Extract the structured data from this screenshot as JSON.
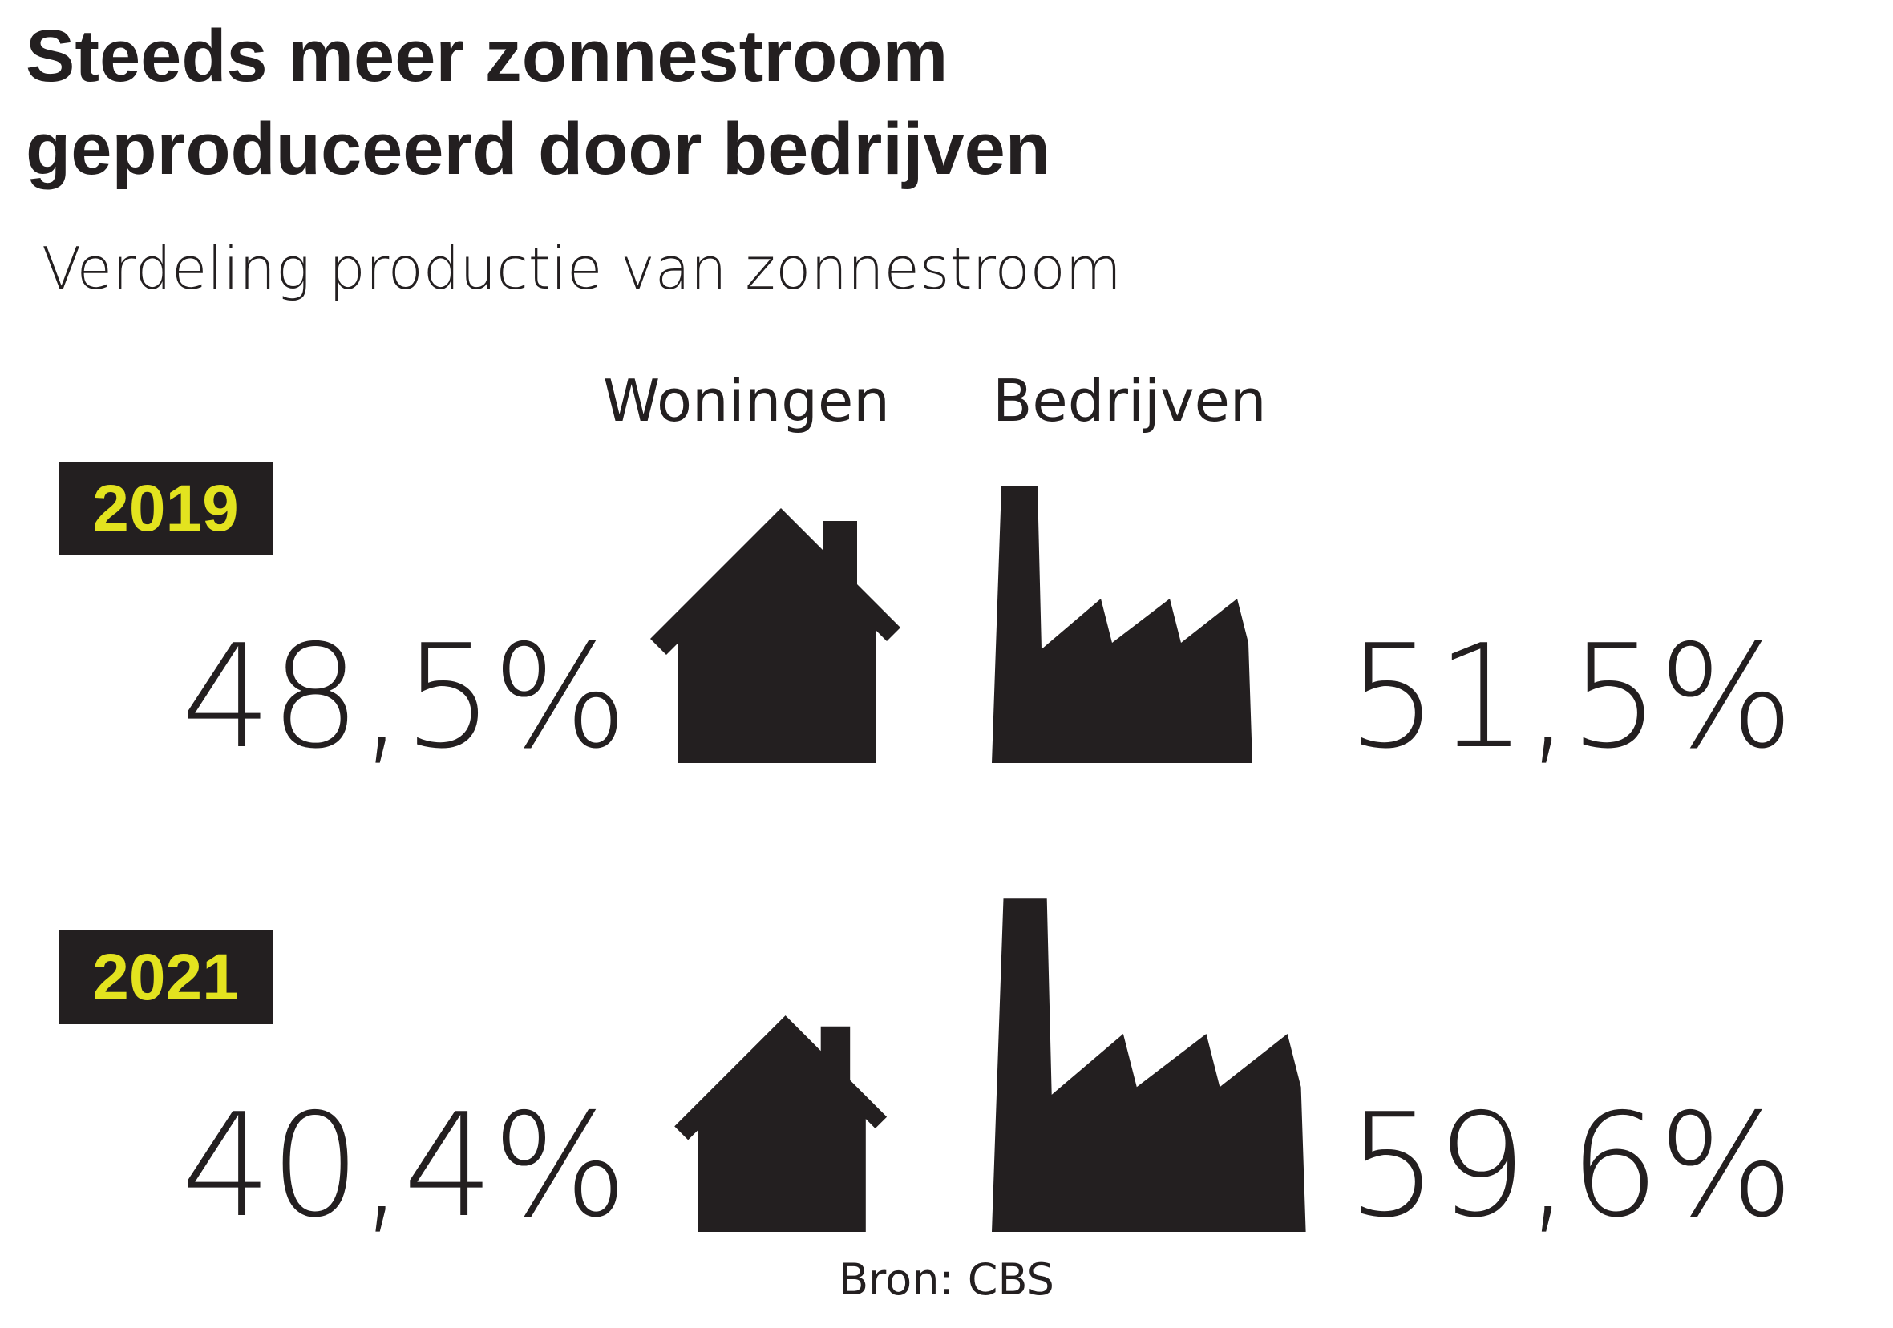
{
  "title": "Steeds meer zonnestroom geproduceerd door bedrijven",
  "subtitle": "Verdeling productie van zonnestroom",
  "columns": {
    "left": "Woningen",
    "right": "Bedrijven"
  },
  "source": "Bron: CBS",
  "colors": {
    "ink": "#231f20",
    "year_text": "#e3e31f",
    "background": "#ffffff"
  },
  "icons": {
    "left": "house-icon",
    "right": "factory-icon"
  },
  "chart_data": {
    "type": "table",
    "title": "Steeds meer zonnestroom geproduceerd door bedrijven",
    "subtitle": "Verdeling productie van zonnestroom",
    "categories": [
      "2019",
      "2021"
    ],
    "series": [
      {
        "name": "Woningen",
        "values": [
          48.5,
          40.4
        ],
        "labels": [
          "48,5%",
          "40,4%"
        ]
      },
      {
        "name": "Bedrijven",
        "values": [
          51.5,
          59.6
        ],
        "labels": [
          "51,5%",
          "59,6%"
        ]
      }
    ],
    "unit": "%"
  }
}
